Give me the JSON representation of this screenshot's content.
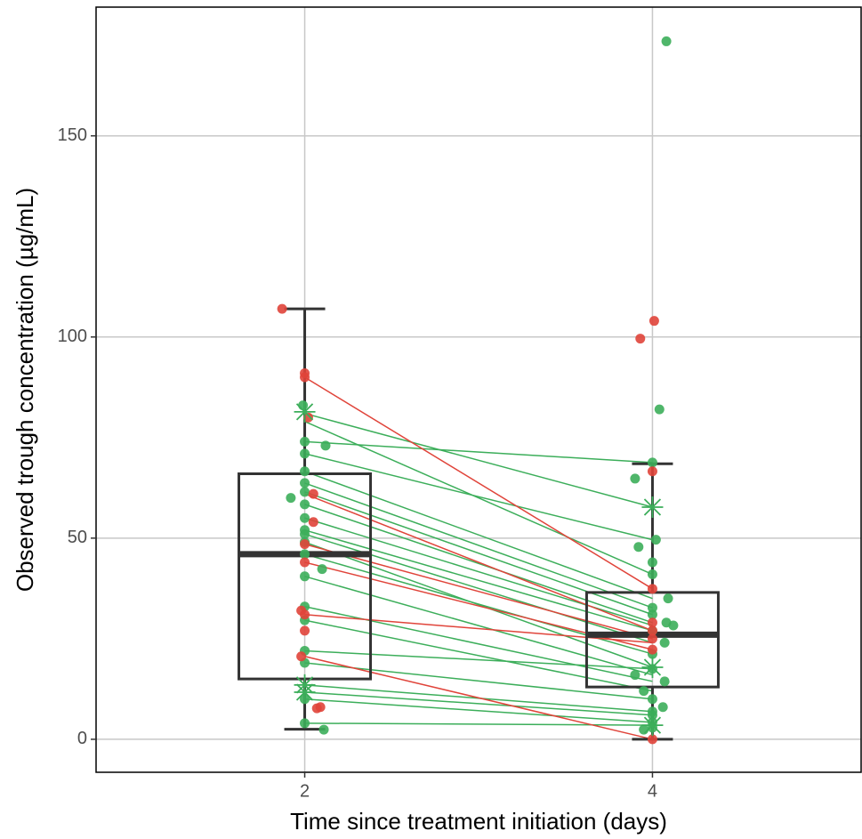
{
  "chart_data": {
    "type": "box",
    "x_label": "Time since treatment initiation (days)",
    "y_label": "Observed trough concentration (µg/mL)",
    "xlim": [
      0.8,
      5.2
    ],
    "ylim": [
      -8.2,
      182
    ],
    "xticks": [
      2,
      4
    ],
    "yticks": [
      0,
      50,
      100,
      150
    ],
    "grid": true,
    "boxes": [
      {
        "x": 2,
        "low": 2.5,
        "q1": 15,
        "median": 46,
        "q3": 66,
        "high": 107
      },
      {
        "x": 4,
        "low": 0,
        "q1": 13,
        "median": 26,
        "q3": 36.5,
        "high": 68.5
      }
    ],
    "line_groups": [
      {
        "color": "#3cae5a",
        "start": [
          81,
          79,
          74,
          71,
          66.6,
          63.7,
          61.5,
          58.4,
          55,
          52,
          51,
          49,
          46,
          40.5,
          33,
          29.6,
          22,
          19,
          13.5,
          11.7,
          10,
          4
        ],
        "end": [
          57.7,
          41,
          68.8,
          49.6,
          35,
          32.7,
          31,
          29,
          28.3,
          27,
          24,
          17.9,
          21.2,
          16,
          14.4,
          12,
          17.5,
          10,
          6.9,
          6,
          4.2,
          3.5
        ]
      },
      {
        "color": "#e0443a",
        "start": [
          90,
          61,
          48.5,
          44,
          31,
          20.6
        ],
        "end": [
          37.4,
          27,
          25,
          22.3,
          24,
          0
        ]
      }
    ],
    "point_groups": [
      {
        "color": "#3cae5a",
        "marker": "circle",
        "x": [
          1.99,
          2.0,
          2.12,
          2.0,
          2.0,
          2.0,
          2.0,
          1.92,
          2.0,
          2.0,
          2.0,
          2.0,
          2.0,
          2.0,
          2.1,
          2.0,
          2.0,
          2.0,
          2.0,
          2.0,
          2.0,
          2.0,
          2.11,
          4.08,
          4.04,
          4.0,
          3.9,
          4.02,
          3.92,
          4.0,
          4.0,
          4.09,
          4.0,
          4.0,
          4.08,
          4.12,
          4.0,
          4.07,
          4.0,
          4.0,
          3.9,
          4.07,
          3.95,
          4.0,
          4.06,
          4.0,
          4.0,
          4.0,
          4.0,
          3.95
        ],
        "y": [
          83,
          74,
          73,
          71,
          66.6,
          63.7,
          61.5,
          60,
          58.4,
          55,
          52,
          51,
          49,
          46,
          42.3,
          40.5,
          33,
          29.6,
          22,
          19,
          10,
          4,
          2.4,
          173.5,
          82,
          68.8,
          64.8,
          49.6,
          47.8,
          44,
          41,
          35,
          32.7,
          31,
          29,
          28.3,
          27,
          24,
          21.2,
          17.5,
          16,
          14.4,
          12,
          10,
          8,
          6.9,
          6,
          4.2,
          2.9,
          2.4
        ]
      },
      {
        "color": "#e0443a",
        "marker": "circle",
        "x": [
          1.87,
          2.0,
          2.0,
          2.02,
          2.05,
          2.05,
          2.0,
          2.0,
          1.98,
          2.0,
          2.0,
          1.98,
          2.09,
          2.07,
          4.01,
          3.93,
          4.0,
          4.0,
          4.0,
          4.0,
          4.0,
          4.0,
          4.0
        ],
        "y": [
          107,
          91,
          90,
          80,
          61,
          54,
          48.5,
          44,
          32,
          31,
          27,
          20.6,
          8,
          7.7,
          104,
          99.6,
          66.6,
          37.4,
          29,
          27,
          25,
          22.3,
          0
        ]
      },
      {
        "color": "#3cae5a",
        "marker": "star",
        "x": [
          2.0,
          2.0,
          2.0,
          4.0,
          4.0,
          4.0
        ],
        "y": [
          81.4,
          13.5,
          11.7,
          57.7,
          17.9,
          3.5
        ]
      }
    ]
  }
}
